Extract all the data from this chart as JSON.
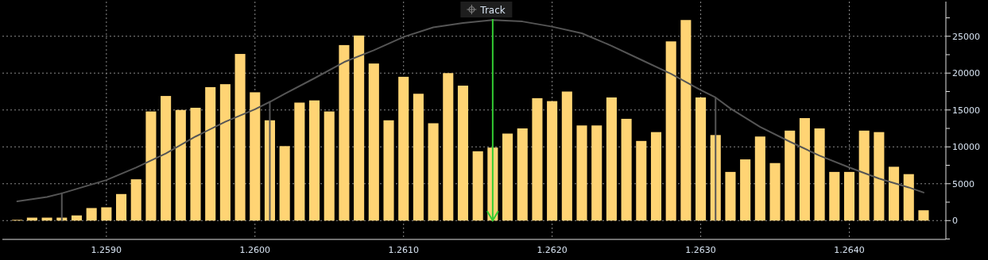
{
  "chart_data": {
    "type": "histogram",
    "bins": [
      1.25835,
      1.25845,
      1.25855,
      1.25865,
      1.25875,
      1.25885,
      1.25895,
      1.25905,
      1.25915,
      1.25925,
      1.25935,
      1.25945,
      1.25955,
      1.25965,
      1.25975,
      1.25985,
      1.25995,
      1.26005,
      1.26015,
      1.26025,
      1.26035,
      1.26045,
      1.26055,
      1.26065,
      1.26075,
      1.26085,
      1.26095,
      1.26105,
      1.26115,
      1.26125,
      1.26135,
      1.26145,
      1.26155,
      1.26165,
      1.26175,
      1.26185,
      1.26195,
      1.26205,
      1.26215,
      1.26225,
      1.26235,
      1.26245,
      1.26255,
      1.26265,
      1.26275,
      1.26285,
      1.26295,
      1.26305,
      1.26315,
      1.26325,
      1.26335,
      1.26345,
      1.26355,
      1.26365,
      1.26375,
      1.26385,
      1.26395,
      1.26405,
      1.26415,
      1.26425,
      1.26435,
      1.26445,
      1.26455
    ],
    "values": [
      100,
      400,
      400,
      400,
      700,
      1700,
      1800,
      3600,
      5600,
      14800,
      16900,
      15000,
      15300,
      18100,
      18500,
      22600,
      17400,
      13600,
      10100,
      16000,
      16300,
      14800,
      23800,
      25100,
      21300,
      13600,
      19500,
      17200,
      13200,
      20000,
      18300,
      9400,
      9900,
      11800,
      12500,
      16600,
      16200,
      17500,
      12900,
      12900,
      16700,
      13800,
      10800,
      12000,
      24300,
      27200,
      16700,
      11600,
      6600,
      8300,
      11400,
      7800,
      12200,
      13900,
      12500,
      6600,
      6600,
      12200,
      12000,
      7300,
      6300,
      1400
    ],
    "color": "#ffd474",
    "series": [
      {
        "type": "line",
        "color": "#555555",
        "x": [
          1.2584,
          1.2586,
          1.2587,
          1.259,
          1.2592,
          1.2594,
          1.2596,
          1.2598,
          1.26,
          1.2601,
          1.2602,
          1.2604,
          1.2606,
          1.2608,
          1.261,
          1.2612,
          1.2614,
          1.2616,
          1.2618,
          1.262,
          1.2622,
          1.2624,
          1.2626,
          1.2628,
          1.263,
          1.2631,
          1.2632,
          1.2634,
          1.2636,
          1.2638,
          1.264,
          1.2642,
          1.2644,
          1.2645
        ],
        "values": [
          2600,
          3200,
          3700,
          5500,
          7200,
          9100,
          11400,
          13400,
          15100,
          16100,
          17200,
          19300,
          21500,
          23100,
          24900,
          26200,
          26800,
          27200,
          27000,
          26300,
          25400,
          23700,
          21800,
          19900,
          17700,
          16700,
          15200,
          12700,
          10700,
          8800,
          7200,
          5700,
          4500,
          3800
        ]
      },
      {
        "type": "line",
        "color": "#555555",
        "x": [
          1.2587,
          1.2587
        ],
        "values": [
          0,
          3700
        ]
      },
      {
        "type": "line",
        "color": "#555555",
        "x": [
          1.2601,
          1.2601
        ],
        "values": [
          0,
          16100
        ]
      },
      {
        "type": "line",
        "color": "#555555",
        "x": [
          1.2631,
          1.2631
        ],
        "values": [
          0,
          16700
        ]
      }
    ],
    "ref_lines": [
      {
        "axis": "x",
        "value": 1.2616,
        "label": "Track",
        "color": "#33cc33"
      }
    ],
    "xlim": [
      1.2583,
      1.26465
    ],
    "xticks": [
      {
        "value": 1.259,
        "label": "1.2590"
      },
      {
        "value": 1.26,
        "label": "1.2600"
      },
      {
        "value": 1.261,
        "label": "1.2610"
      },
      {
        "value": 1.262,
        "label": "1.2620"
      },
      {
        "value": 1.263,
        "label": "1.2630"
      },
      {
        "value": 1.264,
        "label": "1.2640"
      }
    ],
    "ylim": [
      -2550,
      29700
    ],
    "yticks": [
      {
        "value": -2500,
        "label": null
      },
      0,
      {
        "value": 2500,
        "label": null
      },
      5000,
      {
        "value": 7500,
        "label": null
      },
      10000,
      {
        "value": 12500,
        "label": null
      },
      15000,
      {
        "value": 17500,
        "label": null
      },
      20000,
      {
        "value": 22500,
        "label": null
      },
      25000,
      {
        "value": 27500,
        "label": null
      }
    ],
    "grid": true
  }
}
